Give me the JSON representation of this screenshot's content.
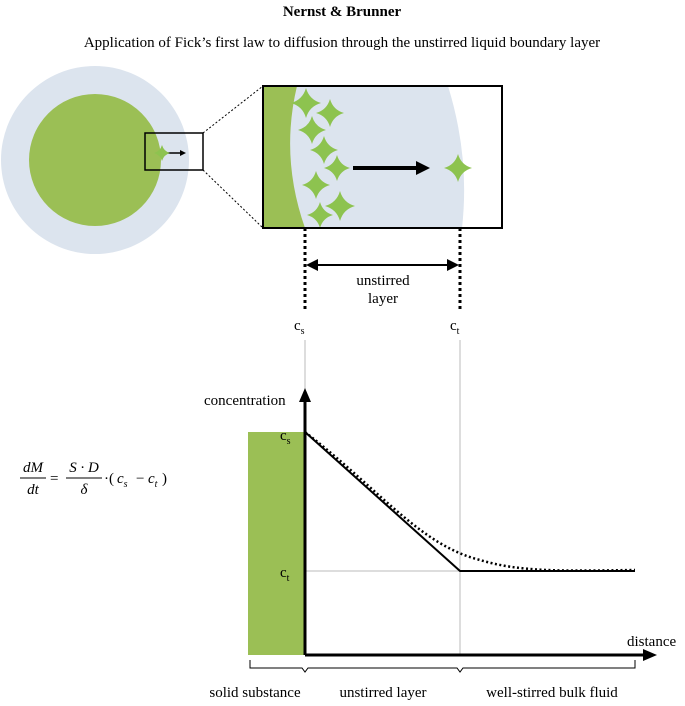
{
  "header": {
    "title": "Nernst & Brunner",
    "subtitle": "Application of Fick’s first law to diffusion through the unstirred liquid boundary layer"
  },
  "zoom": {
    "layer_label_1": "unstirred",
    "layer_label_2": "layer",
    "cs": {
      "main": "c",
      "sub": "s"
    },
    "ct": {
      "main": "c",
      "sub": "t"
    }
  },
  "graph": {
    "y_label": "concentration",
    "x_label": "distance",
    "cs": {
      "main": "c",
      "sub": "s"
    },
    "ct": {
      "main": "c",
      "sub": "t"
    },
    "regions": [
      "solid substance",
      "unstirred layer",
      "well-stirred bulk fluid"
    ]
  },
  "equation": {
    "num_left": "dM",
    "den_left": "dt",
    "equals": "=",
    "num_right": "S · D",
    "den_right": "δ",
    "dot_open": "·(",
    "c1": "c",
    "s1": "s",
    "minus": "−",
    "c2": "c",
    "s2": "t",
    "close": ")"
  }
}
